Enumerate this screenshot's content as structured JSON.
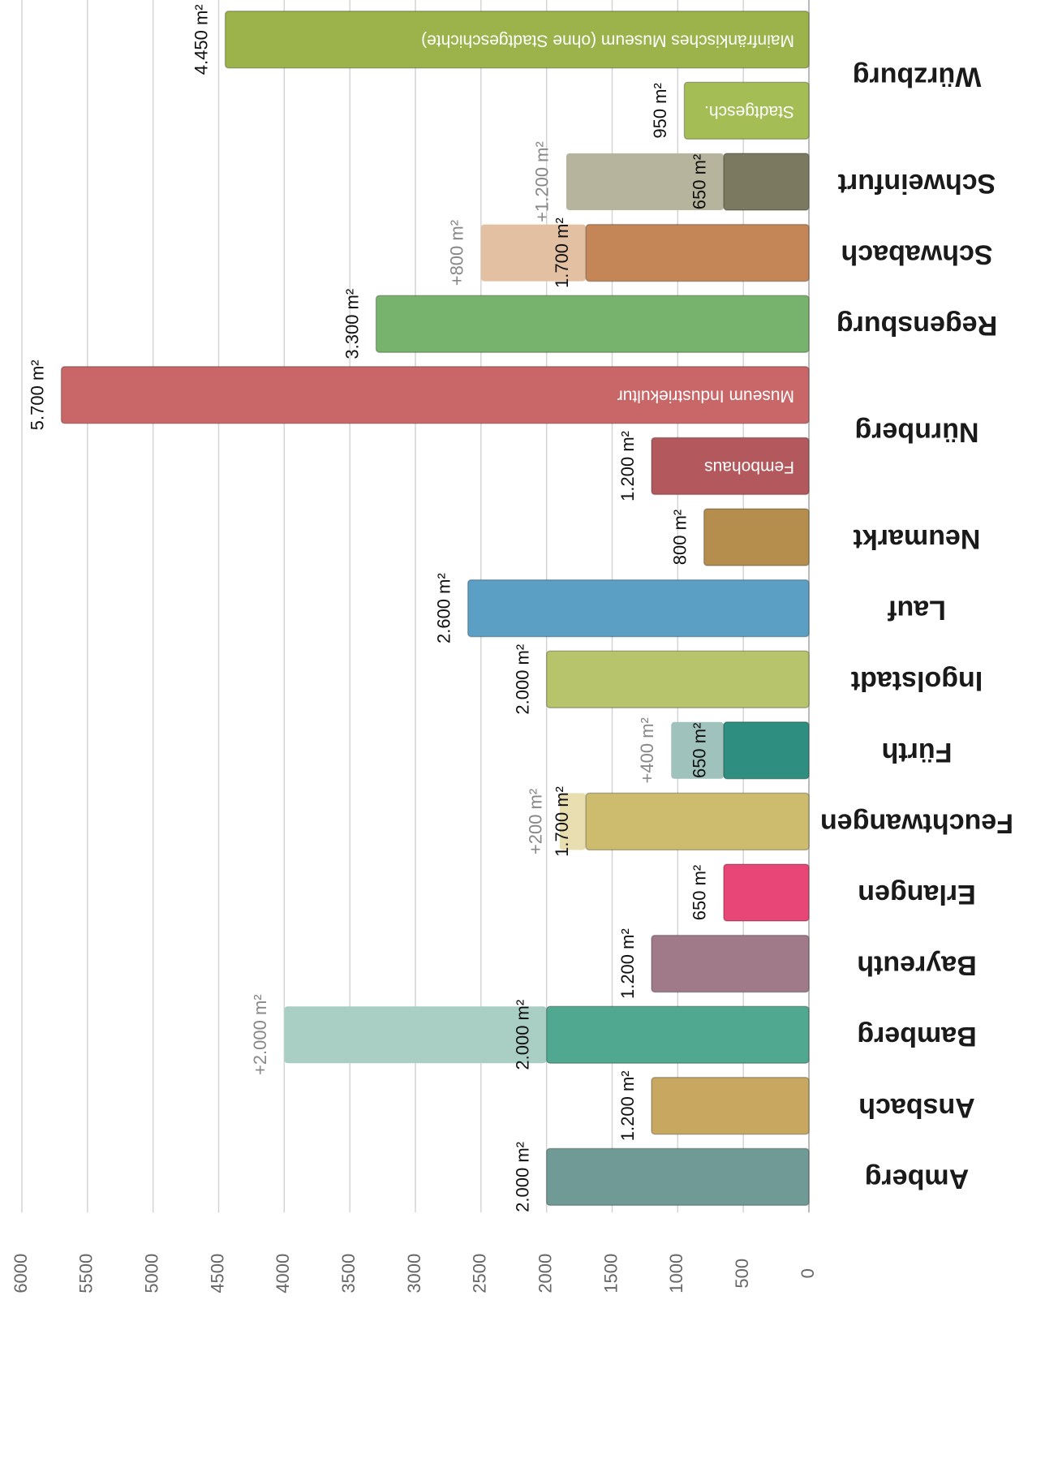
{
  "chart_data": {
    "type": "bar",
    "orientation": "horizontal",
    "xlim": [
      0,
      6000
    ],
    "xticks": [
      0,
      500,
      1000,
      1500,
      2000,
      2500,
      3000,
      3500,
      4000,
      4500,
      5000,
      5500,
      6000
    ],
    "grid": true,
    "categories": [
      {
        "name": "Würzburg",
        "bars": [
          {
            "value": 4450,
            "value_label": "4.450 m²",
            "color": "#9bb34a",
            "text": "Mainfränkisches Museum (ohne Stadtgeschichte)"
          },
          {
            "value": 950,
            "value_label": "950 m²",
            "color": "#a4bd55",
            "text": "Stadtgesch."
          }
        ]
      },
      {
        "name": "Schweinfurt",
        "bars": [
          {
            "value": 650,
            "value_label": "650 m²",
            "color": "#7b7960",
            "extra": 1200,
            "extra_label": "+1.200 m²",
            "extra_color": "#b6b49c"
          }
        ]
      },
      {
        "name": "Schwabach",
        "bars": [
          {
            "value": 1700,
            "value_label": "1.700 m²",
            "color": "#c48656",
            "extra": 800,
            "extra_label": "+800 m²",
            "extra_color": "#e3c0a2"
          }
        ]
      },
      {
        "name": "Regensburg",
        "bars": [
          {
            "value": 3300,
            "value_label": "3.300 m²",
            "color": "#78b36d"
          }
        ]
      },
      {
        "name": "Nürnberg",
        "bars": [
          {
            "value": 5700,
            "value_label": "5.700 m²",
            "color": "#c86668",
            "text": "Museum Industriekultur"
          },
          {
            "value": 1200,
            "value_label": "1.200 m²",
            "color": "#b3585c",
            "text": "Fembohaus"
          }
        ]
      },
      {
        "name": "Neumarkt",
        "bars": [
          {
            "value": 800,
            "value_label": "800 m²",
            "color": "#b58e4e"
          }
        ]
      },
      {
        "name": "Lauf",
        "bars": [
          {
            "value": 2600,
            "value_label": "2.600 m²",
            "color": "#5b9fc4"
          }
        ]
      },
      {
        "name": "Ingolstadt",
        "bars": [
          {
            "value": 2000,
            "value_label": "2.000 m²",
            "color": "#b8c46b"
          }
        ]
      },
      {
        "name": "Fürth",
        "bars": [
          {
            "value": 650,
            "value_label": "650 m²",
            "color": "#2e8e80",
            "extra": 400,
            "extra_label": "+400 m²",
            "extra_color": "#9fc2bc"
          }
        ]
      },
      {
        "name": "Feuchtwangen",
        "bars": [
          {
            "value": 1700,
            "value_label": "1.700 m²",
            "color": "#cdbc6e",
            "extra": 200,
            "extra_label": "+200 m²",
            "extra_color": "#e8deb0"
          }
        ]
      },
      {
        "name": "Erlangen",
        "label_color": "#e0007a",
        "bars": [
          {
            "value": 650,
            "value_label": "650 m²",
            "color": "#e84676"
          }
        ]
      },
      {
        "name": "Bayreuth",
        "bars": [
          {
            "value": 1200,
            "value_label": "1.200 m²",
            "color": "#a07a88"
          }
        ]
      },
      {
        "name": "Bamberg",
        "bars": [
          {
            "value": 2000,
            "value_label": "2.000 m²",
            "color": "#4fa88f",
            "extra": 2000,
            "extra_label": "+2.000 m²",
            "extra_color": "#a9cfc4"
          }
        ]
      },
      {
        "name": "Ansbach",
        "bars": [
          {
            "value": 1200,
            "value_label": "1.200 m²",
            "color": "#c8a860"
          }
        ]
      },
      {
        "name": "Amberg",
        "bars": [
          {
            "value": 2000,
            "value_label": "2.000 m²",
            "color": "#6f9a95"
          }
        ]
      }
    ]
  }
}
